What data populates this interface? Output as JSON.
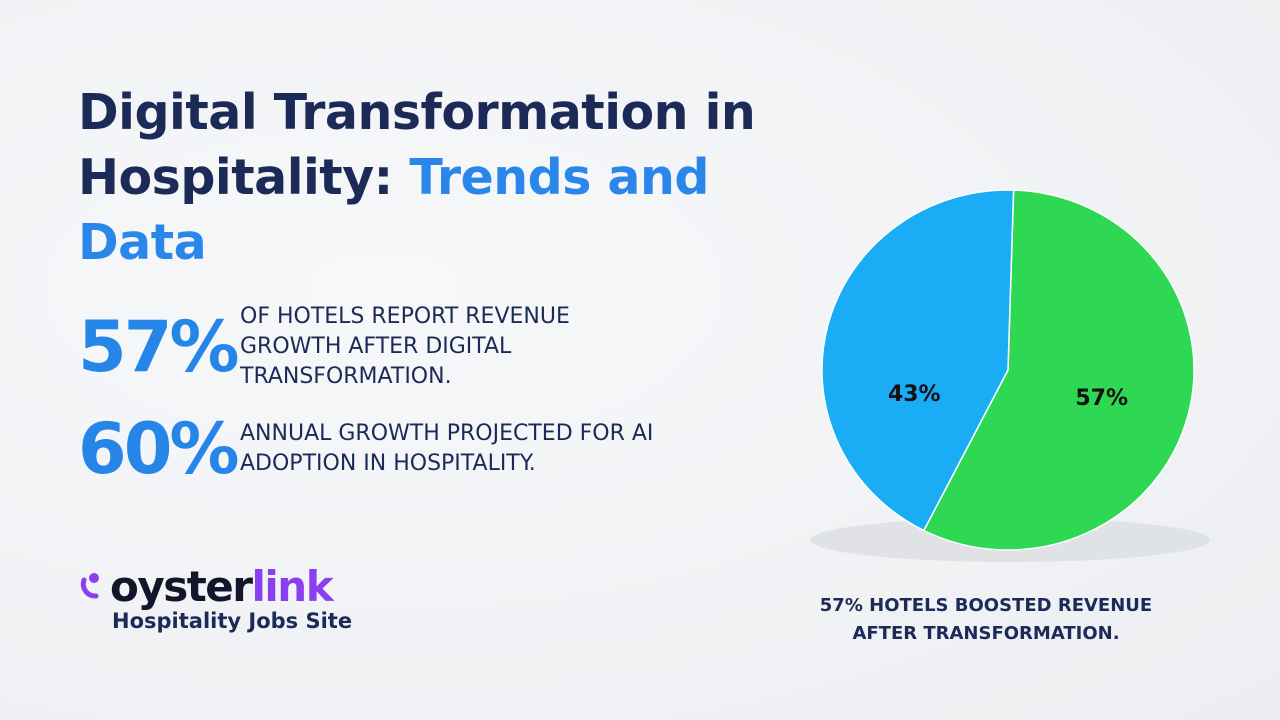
{
  "header": {
    "title_dark": "Digital Transformation in Hospitality:",
    "title_accent": "Trends and Data"
  },
  "stats": [
    {
      "figure": "57%",
      "text": "OF HOTELS REPORT REVENUE GROWTH AFTER DIGITAL TRANSFORMATION."
    },
    {
      "figure": "60%",
      "text": "ANNUAL GROWTH PROJECTED FOR AI ADOPTION IN HOSPITALITY."
    }
  ],
  "logo": {
    "word_dark": "oyster",
    "word_accent": "link",
    "tagline": "Hospitality Jobs Site"
  },
  "chart_data": {
    "type": "pie",
    "values": [
      57,
      43
    ],
    "value_labels": [
      "57%",
      "43%"
    ],
    "colors": [
      "#2fd852",
      "#1aacf4"
    ],
    "caption": "57% HOTELS BOOSTED REVENUE AFTER TRANSFORMATION."
  }
}
